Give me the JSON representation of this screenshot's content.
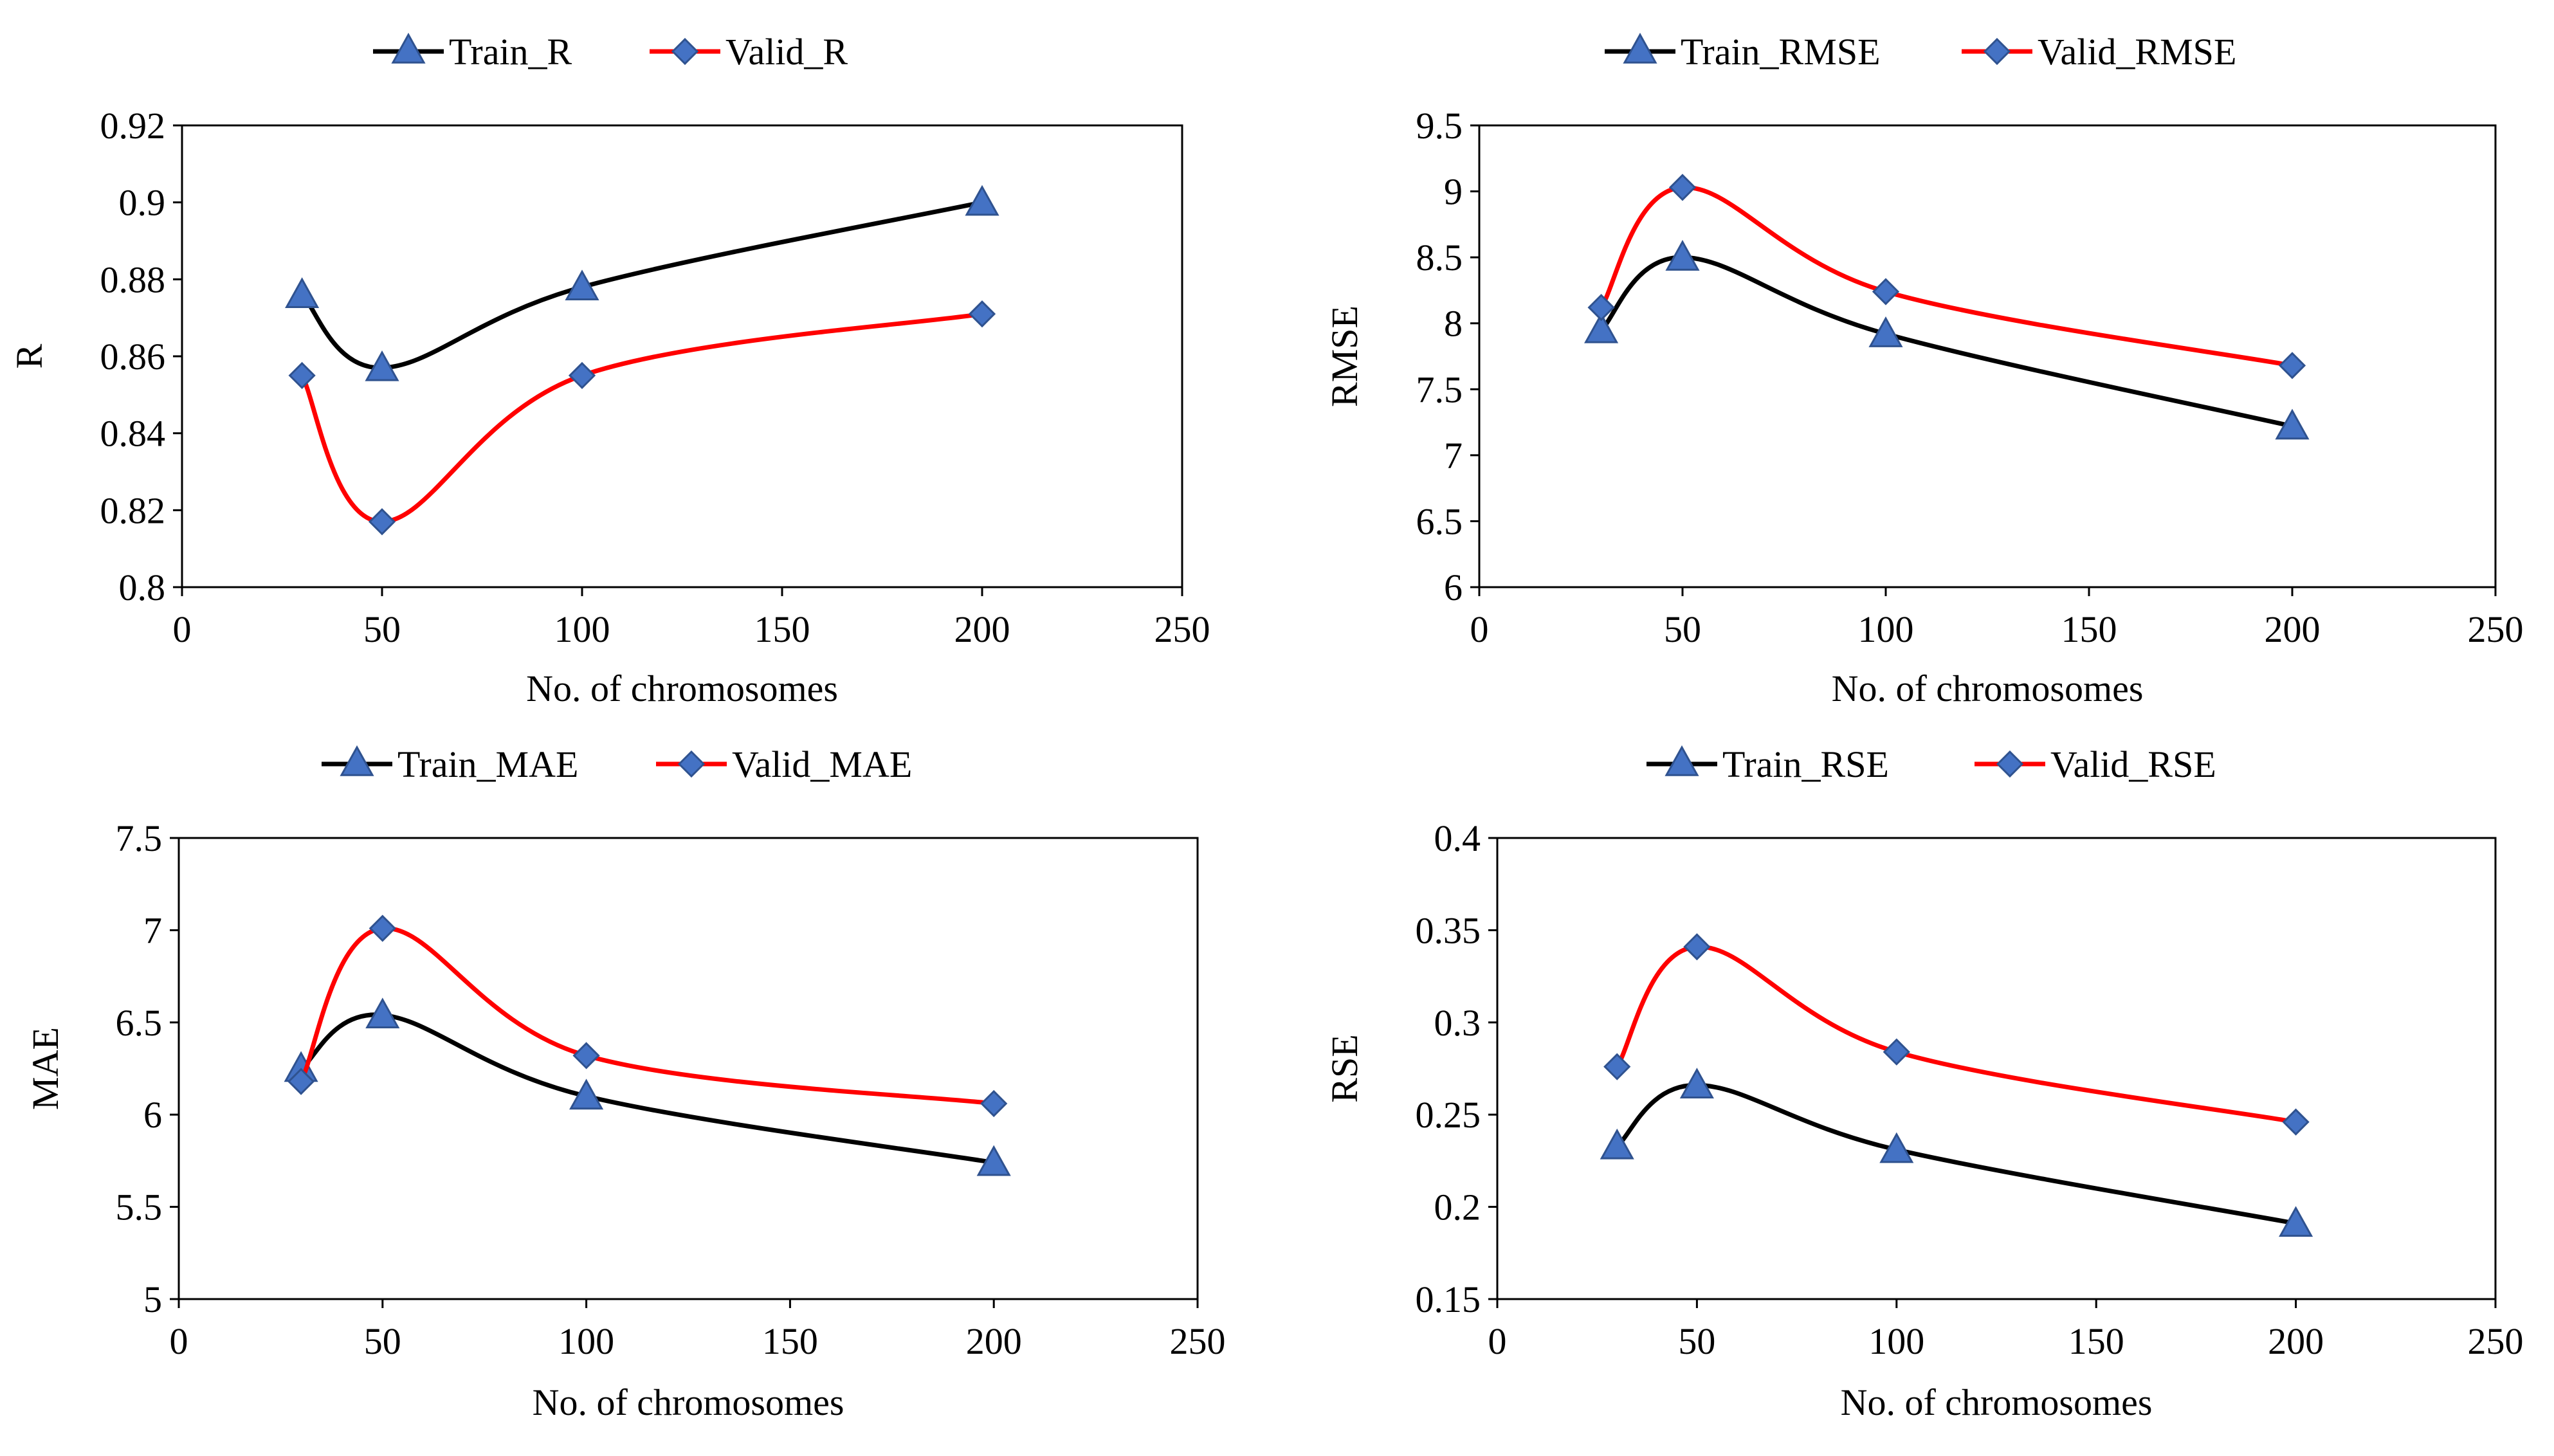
{
  "chart_data": [
    {
      "type": "line",
      "title": "",
      "xlabel": "No. of chromosomes",
      "ylabel": "R",
      "xlim": [
        0,
        250
      ],
      "ylim": [
        0.8,
        0.92
      ],
      "xticks": [
        0,
        50,
        100,
        150,
        200,
        250
      ],
      "yticks": [
        0.8,
        0.82,
        0.84,
        0.86,
        0.88,
        0.9,
        0.92
      ],
      "x_tick_labels": [
        "0",
        "50",
        "100",
        "150",
        "200",
        "250"
      ],
      "y_tick_labels": [
        "0.8",
        "0.82",
        "0.84",
        "0.86",
        "0.88",
        "0.9",
        "0.92"
      ],
      "legend_position": "top-center",
      "x": [
        30,
        50,
        100,
        200
      ],
      "series": [
        {
          "name": "Train_R",
          "values": [
            0.876,
            0.857,
            0.878,
            0.9
          ],
          "color": "#000000",
          "marker": "triangle"
        },
        {
          "name": "Valid_R",
          "values": [
            0.855,
            0.817,
            0.855,
            0.871
          ],
          "color": "#ff0000",
          "marker": "diamond"
        }
      ]
    },
    {
      "type": "line",
      "title": "",
      "xlabel": "No. of chromosomes",
      "ylabel": "RMSE",
      "xlim": [
        0,
        250
      ],
      "ylim": [
        6,
        9.5
      ],
      "xticks": [
        0,
        50,
        100,
        150,
        200,
        250
      ],
      "yticks": [
        6,
        6.5,
        7,
        7.5,
        8,
        8.5,
        9,
        9.5
      ],
      "x_tick_labels": [
        "0",
        "50",
        "100",
        "150",
        "200",
        "250"
      ],
      "y_tick_labels": [
        "6",
        "6.5",
        "7",
        "7.5",
        "8",
        "8.5",
        "9",
        "9.5"
      ],
      "legend_position": "top-center",
      "x": [
        30,
        50,
        100,
        200
      ],
      "series": [
        {
          "name": "Train_RMSE",
          "values": [
            7.95,
            8.5,
            7.92,
            7.22
          ],
          "color": "#000000",
          "marker": "triangle"
        },
        {
          "name": "Valid_RMSE",
          "values": [
            8.12,
            9.03,
            8.24,
            7.68
          ],
          "color": "#ff0000",
          "marker": "diamond"
        }
      ]
    },
    {
      "type": "line",
      "title": "",
      "xlabel": "No. of chromosomes",
      "ylabel": "MAE",
      "xlim": [
        0,
        250
      ],
      "ylim": [
        5,
        7.5
      ],
      "xticks": [
        0,
        50,
        100,
        150,
        200,
        250
      ],
      "yticks": [
        5,
        5.5,
        6,
        6.5,
        7,
        7.5
      ],
      "x_tick_labels": [
        "0",
        "50",
        "100",
        "150",
        "200",
        "250"
      ],
      "y_tick_labels": [
        "5",
        "5.5",
        "6",
        "6.5",
        "7",
        "7.5"
      ],
      "legend_position": "top-center",
      "x": [
        30,
        50,
        100,
        200
      ],
      "series": [
        {
          "name": "Train_MAE",
          "values": [
            6.25,
            6.54,
            6.1,
            5.74
          ],
          "color": "#000000",
          "marker": "triangle"
        },
        {
          "name": "Valid_MAE",
          "values": [
            6.18,
            7.01,
            6.32,
            6.06
          ],
          "color": "#ff0000",
          "marker": "diamond"
        }
      ]
    },
    {
      "type": "line",
      "title": "",
      "xlabel": "No. of chromosomes",
      "ylabel": "RSE",
      "xlim": [
        0,
        250
      ],
      "ylim": [
        0.15,
        0.4
      ],
      "xticks": [
        0,
        50,
        100,
        150,
        200,
        250
      ],
      "yticks": [
        0.15,
        0.2,
        0.25,
        0.3,
        0.35,
        0.4
      ],
      "x_tick_labels": [
        "0",
        "50",
        "100",
        "150",
        "200",
        "250"
      ],
      "y_tick_labels": [
        "0.15",
        "0.2",
        "0.25",
        "0.3",
        "0.35",
        "0.4"
      ],
      "legend_position": "top-center",
      "x": [
        30,
        50,
        100,
        200
      ],
      "series": [
        {
          "name": "Train_RSE",
          "values": [
            0.233,
            0.266,
            0.231,
            0.191
          ],
          "color": "#000000",
          "marker": "triangle"
        },
        {
          "name": "Valid_RSE",
          "values": [
            0.276,
            0.341,
            0.284,
            0.246
          ],
          "color": "#ff0000",
          "marker": "diamond"
        }
      ]
    }
  ],
  "style": {
    "marker_color": "#4472c4",
    "marker_outline": "#2f528f",
    "axis_color": "#000000",
    "background": "#ffffff"
  }
}
